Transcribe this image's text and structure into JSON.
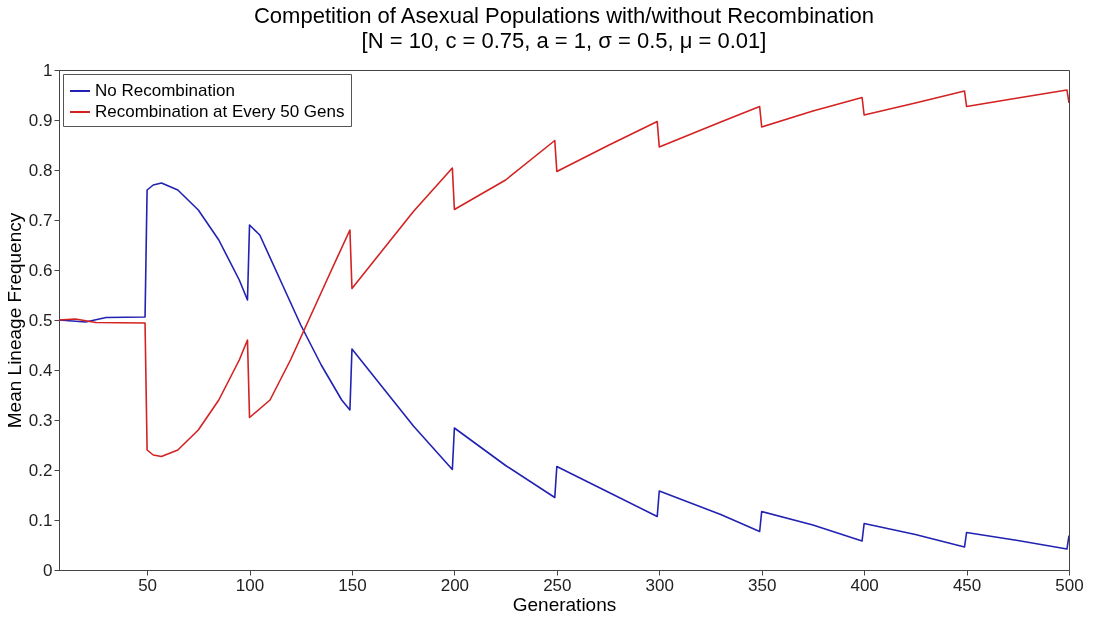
{
  "chart_data": {
    "type": "line",
    "title": "Competition of Asexual Populations with/without Recombination",
    "subtitle": "[N = 10, c = 0.75, a = 1, σ = 0.5, μ = 0.01]",
    "xlabel": "Generations",
    "ylabel": "Mean Lineage Frequency",
    "xlim": [
      7,
      500
    ],
    "xticks": [
      50,
      100,
      150,
      200,
      250,
      300,
      350,
      400,
      450,
      500
    ],
    "ylim": [
      0,
      1
    ],
    "yticks": [
      0,
      0.1,
      0.2,
      0.3,
      0.4,
      0.5,
      0.6,
      0.7,
      0.8,
      0.9,
      1
    ],
    "grid": false,
    "legend": "top left",
    "marker": "none",
    "line_style": "solid",
    "series": [
      {
        "name": "No Recombination",
        "color": "#2222b2",
        "x": [
          7,
          20,
          30,
          49,
          50,
          53,
          57,
          65,
          75,
          85,
          95,
          99,
          100,
          105,
          115,
          125,
          135,
          145,
          149,
          150,
          180,
          199,
          200,
          225,
          249,
          250,
          275,
          299,
          300,
          330,
          349,
          350,
          375,
          399,
          400,
          425,
          449,
          450,
          475,
          499,
          500
        ],
        "values": [
          0.5,
          0.496,
          0.505,
          0.506,
          0.76,
          0.77,
          0.774,
          0.76,
          0.72,
          0.66,
          0.58,
          0.54,
          0.69,
          0.67,
          0.58,
          0.49,
          0.41,
          0.34,
          0.32,
          0.442,
          0.288,
          0.201,
          0.284,
          0.209,
          0.145,
          0.207,
          0.156,
          0.107,
          0.158,
          0.111,
          0.077,
          0.117,
          0.09,
          0.058,
          0.093,
          0.071,
          0.046,
          0.075,
          0.059,
          0.042,
          0.069
        ]
      },
      {
        "name": "Recombination at Every 50 Gens",
        "color": "#d42222",
        "x": [
          7,
          15,
          25,
          49,
          50,
          53,
          57,
          65,
          75,
          85,
          95,
          99,
          100,
          110,
          120,
          130,
          140,
          149,
          150,
          180,
          199,
          200,
          225,
          249,
          250,
          275,
          299,
          300,
          330,
          349,
          350,
          375,
          399,
          400,
          425,
          449,
          450,
          475,
          499,
          500
        ],
        "values": [
          0.5,
          0.502,
          0.495,
          0.494,
          0.24,
          0.23,
          0.227,
          0.24,
          0.28,
          0.34,
          0.42,
          0.46,
          0.305,
          0.34,
          0.42,
          0.51,
          0.6,
          0.68,
          0.563,
          0.717,
          0.804,
          0.721,
          0.78,
          0.859,
          0.797,
          0.849,
          0.897,
          0.846,
          0.896,
          0.927,
          0.886,
          0.918,
          0.945,
          0.91,
          0.934,
          0.958,
          0.927,
          0.944,
          0.96,
          0.934
        ]
      }
    ]
  }
}
